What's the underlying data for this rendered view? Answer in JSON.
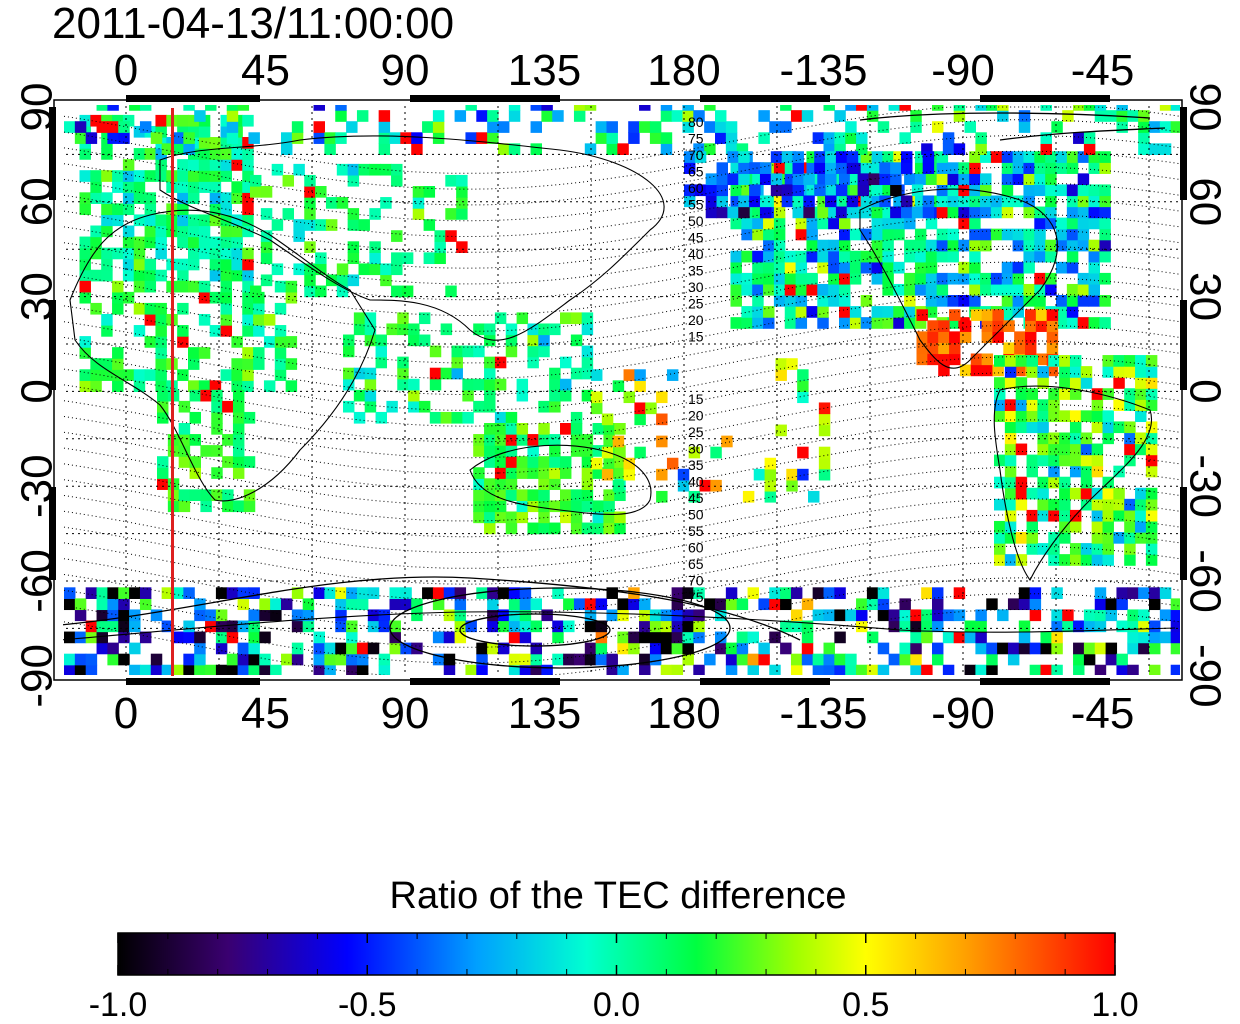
{
  "title": "2011-04-13/11:00:00",
  "map": {
    "lon_ticks": [
      "0",
      "45",
      "90",
      "135",
      "180",
      "-135",
      "-90",
      "-45"
    ],
    "lat_ticks": [
      "90",
      "60",
      "30",
      "0",
      "-30",
      "-60",
      "-90"
    ],
    "marker_longitude": 15,
    "marker_color": "#dd2020",
    "north_contour_labels": [
      "80",
      "75",
      "70",
      "65",
      "60",
      "55",
      "50",
      "45",
      "40",
      "35",
      "30",
      "25",
      "20",
      "15"
    ],
    "south_contour_labels": [
      "15",
      "20",
      "25",
      "30",
      "35",
      "40",
      "45",
      "50",
      "55",
      "60",
      "65",
      "70",
      "75"
    ]
  },
  "colorbar": {
    "title": "Ratio of the TEC difference",
    "tick_labels": [
      "-1.0",
      "-0.5",
      "0.0",
      "0.5",
      "1.0"
    ],
    "range": [
      -1.0,
      1.0
    ],
    "colormap": [
      "#000000",
      "#3a0070",
      "#0000ff",
      "#00a0ff",
      "#00ffd0",
      "#00ff40",
      "#a0ff00",
      "#ffff00",
      "#ffa000",
      "#ff0000"
    ]
  },
  "chart_data": {
    "type": "heatmap",
    "title": "2011-04-13/11:00:00",
    "colorbar_label": "Ratio of the TEC difference",
    "value_range": [
      -1.0,
      1.0
    ],
    "x_ticks": [
      0,
      45,
      90,
      135,
      180,
      -135,
      -90,
      -45
    ],
    "y_ticks": [
      90,
      60,
      30,
      0,
      -30,
      -60,
      -90
    ],
    "xlim": [
      -20,
      340
    ],
    "ylim": [
      -90,
      90
    ],
    "grid": true
  }
}
